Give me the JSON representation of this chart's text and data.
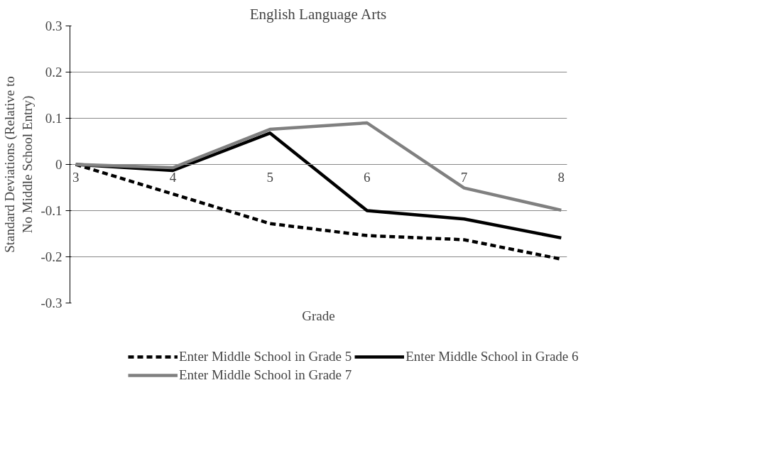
{
  "chart_data": {
    "type": "line",
    "title": "English Language Arts",
    "xlabel": "Grade",
    "ylabel": "Standard Deviations (Relative to No Middle School Entry)",
    "categories": [
      "3",
      "4",
      "5",
      "6",
      "7",
      "8"
    ],
    "series": [
      {
        "name": "Enter Middle School in Grade 5",
        "color": "#000000",
        "line_style": "dashed",
        "values": [
          0,
          -0.064,
          -0.128,
          -0.154,
          -0.163,
          -0.205
        ]
      },
      {
        "name": "Enter Middle School in Grade 6",
        "color": "#000000",
        "line_style": "solid",
        "values": [
          0,
          -0.013,
          0.068,
          -0.1,
          -0.118,
          -0.159
        ]
      },
      {
        "name": "Enter Middle School in Grade 7",
        "color": "#808080",
        "line_style": "solid",
        "values": [
          0,
          -0.007,
          0.076,
          0.09,
          -0.051,
          -0.099
        ]
      }
    ],
    "ylim": [
      -0.3,
      0.3
    ],
    "yticks": [
      -0.3,
      -0.2,
      -0.1,
      0,
      0.1,
      0.2,
      0.3
    ],
    "grid": "y",
    "legend": "bottom",
    "marker": "none"
  }
}
